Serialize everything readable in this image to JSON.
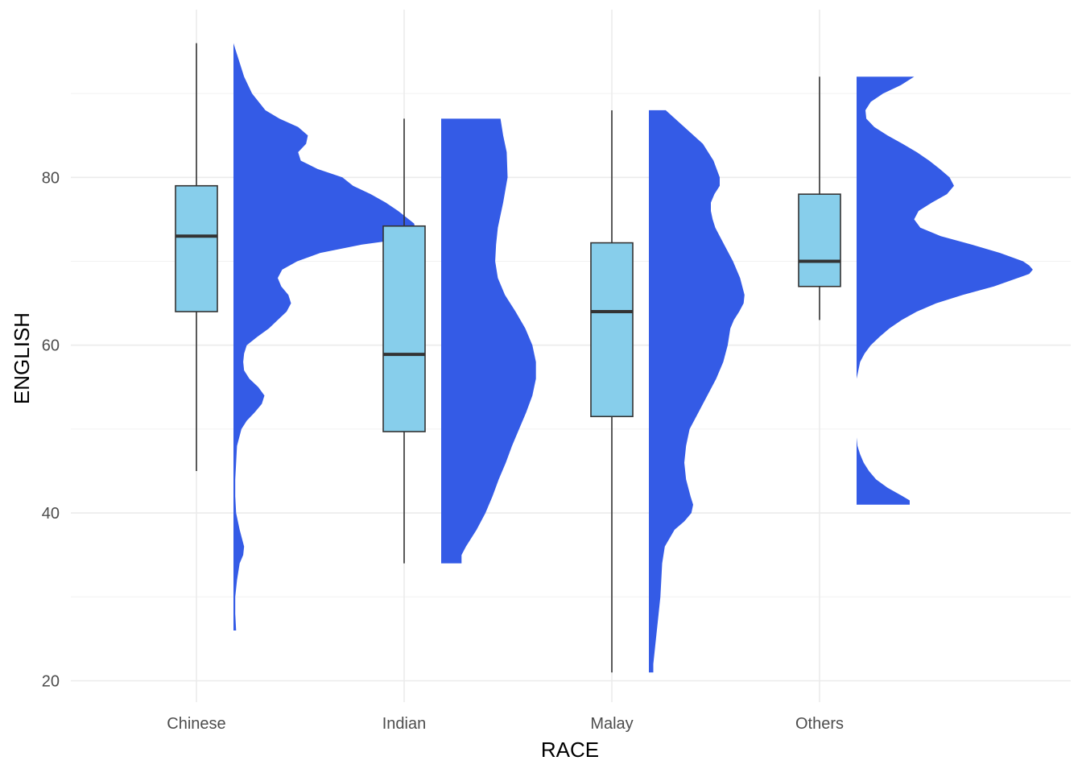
{
  "chart_data": {
    "type": "boxplot",
    "xlabel": "RACE",
    "ylabel": "ENGLISH",
    "ylim": [
      17,
      100
    ],
    "yticks": [
      20,
      40,
      60,
      80
    ],
    "grid": true,
    "categories": [
      "Chinese",
      "Indian",
      "Malay",
      "Others"
    ],
    "box_color": "#87CEEB",
    "density_color": "#345BE6",
    "boxes": [
      {
        "category": "Chinese",
        "min": 45,
        "q1": 64,
        "median": 73,
        "q3": 79,
        "max": 96
      },
      {
        "category": "Indian",
        "min": 34,
        "q1": 49.7,
        "median": 58.9,
        "q3": 74.2,
        "max": 87
      },
      {
        "category": "Malay",
        "min": 21,
        "q1": 51.5,
        "median": 64,
        "q3": 72.2,
        "max": 88
      },
      {
        "category": "Others",
        "min": 63,
        "q1": 67,
        "median": 70,
        "q3": 78,
        "max": 92
      }
    ],
    "densities": [
      {
        "category": "Chinese",
        "points": [
          [
            96,
            0.0
          ],
          [
            94,
            0.06
          ],
          [
            92,
            0.12
          ],
          [
            90,
            0.21
          ],
          [
            88,
            0.36
          ],
          [
            87,
            0.52
          ],
          [
            86,
            0.73
          ],
          [
            85,
            0.84
          ],
          [
            84,
            0.82
          ],
          [
            83,
            0.73
          ],
          [
            82,
            0.76
          ],
          [
            81,
            0.95
          ],
          [
            80,
            1.23
          ],
          [
            79,
            1.35
          ],
          [
            78,
            1.55
          ],
          [
            77,
            1.72
          ],
          [
            76,
            1.86
          ],
          [
            75,
            1.98
          ],
          [
            74.5,
            2.04
          ],
          [
            74,
            2.05
          ],
          [
            73.5,
            2.03
          ],
          [
            73,
            1.96
          ],
          [
            72.5,
            1.8
          ],
          [
            72,
            1.45
          ],
          [
            71,
            0.98
          ],
          [
            70,
            0.72
          ],
          [
            69,
            0.55
          ],
          [
            68,
            0.5
          ],
          [
            67,
            0.54
          ],
          [
            66,
            0.62
          ],
          [
            65,
            0.65
          ],
          [
            64,
            0.6
          ],
          [
            63,
            0.5
          ],
          [
            62,
            0.4
          ],
          [
            61,
            0.27
          ],
          [
            60,
            0.15
          ],
          [
            59,
            0.12
          ],
          [
            58,
            0.11
          ],
          [
            57,
            0.12
          ],
          [
            56,
            0.18
          ],
          [
            55,
            0.28
          ],
          [
            54,
            0.35
          ],
          [
            53,
            0.32
          ],
          [
            52,
            0.24
          ],
          [
            51,
            0.15
          ],
          [
            50,
            0.09
          ],
          [
            48,
            0.04
          ],
          [
            46,
            0.03
          ],
          [
            44,
            0.02
          ],
          [
            42,
            0.02
          ],
          [
            40,
            0.03
          ],
          [
            38,
            0.07
          ],
          [
            36,
            0.12
          ],
          [
            35,
            0.11
          ],
          [
            34,
            0.07
          ],
          [
            32,
            0.04
          ],
          [
            30,
            0.02
          ],
          [
            28,
            0.02
          ],
          [
            26,
            0.03
          ]
        ]
      },
      {
        "category": "Indian",
        "points": [
          [
            87,
            0.67
          ],
          [
            85,
            0.7
          ],
          [
            83,
            0.74
          ],
          [
            80,
            0.75
          ],
          [
            77,
            0.7
          ],
          [
            74,
            0.64
          ],
          [
            72,
            0.62
          ],
          [
            70,
            0.61
          ],
          [
            68,
            0.64
          ],
          [
            66,
            0.72
          ],
          [
            64,
            0.84
          ],
          [
            62,
            0.95
          ],
          [
            60,
            1.03
          ],
          [
            58,
            1.07
          ],
          [
            56,
            1.07
          ],
          [
            54,
            1.03
          ],
          [
            52,
            0.96
          ],
          [
            50,
            0.88
          ],
          [
            48,
            0.8
          ],
          [
            46,
            0.73
          ],
          [
            44,
            0.65
          ],
          [
            42,
            0.58
          ],
          [
            40,
            0.5
          ],
          [
            38,
            0.4
          ],
          [
            36,
            0.28
          ],
          [
            35,
            0.23
          ],
          [
            34,
            0.23
          ]
        ]
      },
      {
        "category": "Malay",
        "points": [
          [
            88,
            0.19
          ],
          [
            86,
            0.4
          ],
          [
            84,
            0.61
          ],
          [
            82,
            0.73
          ],
          [
            80,
            0.8
          ],
          [
            79,
            0.8
          ],
          [
            78,
            0.74
          ],
          [
            77,
            0.7
          ],
          [
            76,
            0.7
          ],
          [
            75,
            0.72
          ],
          [
            74,
            0.75
          ],
          [
            72,
            0.85
          ],
          [
            70,
            0.95
          ],
          [
            68,
            1.03
          ],
          [
            66,
            1.08
          ],
          [
            65,
            1.07
          ],
          [
            64,
            1.02
          ],
          [
            63,
            0.96
          ],
          [
            62,
            0.92
          ],
          [
            60,
            0.89
          ],
          [
            58,
            0.84
          ],
          [
            56,
            0.76
          ],
          [
            54,
            0.66
          ],
          [
            52,
            0.56
          ],
          [
            50,
            0.46
          ],
          [
            48,
            0.42
          ],
          [
            46,
            0.4
          ],
          [
            44,
            0.42
          ],
          [
            42,
            0.47
          ],
          [
            41,
            0.5
          ],
          [
            40,
            0.48
          ],
          [
            39,
            0.4
          ],
          [
            38,
            0.29
          ],
          [
            36,
            0.18
          ],
          [
            34,
            0.15
          ],
          [
            32,
            0.14
          ],
          [
            30,
            0.13
          ],
          [
            28,
            0.11
          ],
          [
            26,
            0.09
          ],
          [
            24,
            0.07
          ],
          [
            22,
            0.05
          ],
          [
            21,
            0.05
          ]
        ]
      },
      {
        "category": "Others",
        "points": [
          [
            92,
            0.65
          ],
          [
            91,
            0.5
          ],
          [
            90,
            0.3
          ],
          [
            89,
            0.16
          ],
          [
            88,
            0.1
          ],
          [
            87,
            0.11
          ],
          [
            86,
            0.2
          ],
          [
            85,
            0.35
          ],
          [
            84,
            0.52
          ],
          [
            83,
            0.68
          ],
          [
            82,
            0.82
          ],
          [
            81,
            0.94
          ],
          [
            80,
            1.05
          ],
          [
            79,
            1.1
          ],
          [
            78,
            1.02
          ],
          [
            77,
            0.85
          ],
          [
            76,
            0.7
          ],
          [
            75,
            0.65
          ],
          [
            74,
            0.72
          ],
          [
            73,
            0.95
          ],
          [
            72,
            1.3
          ],
          [
            71,
            1.62
          ],
          [
            70,
            1.88
          ],
          [
            69.5,
            1.95
          ],
          [
            69,
            1.99
          ],
          [
            68.5,
            1.95
          ],
          [
            68,
            1.82
          ],
          [
            67,
            1.55
          ],
          [
            66,
            1.2
          ],
          [
            65,
            0.9
          ],
          [
            64,
            0.68
          ],
          [
            63,
            0.51
          ],
          [
            62,
            0.37
          ],
          [
            61,
            0.26
          ],
          [
            60,
            0.16
          ],
          [
            59,
            0.09
          ],
          [
            58,
            0.04
          ],
          [
            57,
            0.02
          ],
          [
            56,
            0.0
          ],
          [
            50,
            0.0
          ],
          [
            49,
            0.0
          ],
          [
            48,
            0.01
          ],
          [
            47,
            0.04
          ],
          [
            46,
            0.08
          ],
          [
            45,
            0.14
          ],
          [
            44,
            0.22
          ],
          [
            43,
            0.35
          ],
          [
            42,
            0.52
          ],
          [
            41.5,
            0.6
          ],
          [
            41,
            0.6
          ]
        ]
      }
    ]
  }
}
